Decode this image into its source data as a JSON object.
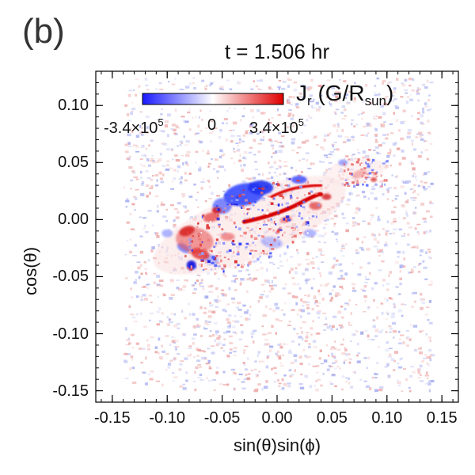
{
  "panel_label": "(b)",
  "chart_data": {
    "type": "heatmap",
    "title": "t = 1.506 hr",
    "xlabel": "sin(θ)sin(ϕ)",
    "ylabel": "cos(θ)",
    "xlim": [
      -0.165,
      0.165
    ],
    "ylim": [
      -0.16,
      0.13
    ],
    "x_ticks": [
      -0.15,
      -0.1,
      -0.05,
      0.0,
      0.05,
      0.1,
      0.15
    ],
    "x_tick_labels": [
      "-0.15",
      "-0.10",
      "-0.05",
      "0.00",
      "0.05",
      "0.10",
      "0.15"
    ],
    "y_ticks": [
      0.1,
      0.05,
      0.0,
      -0.05,
      -0.1,
      -0.15
    ],
    "y_tick_labels": [
      "0.10",
      "0.05",
      "0.00",
      "-0.05",
      "-0.10",
      "-0.15"
    ],
    "data_extent": {
      "x": [
        -0.14,
        0.14
      ],
      "y": [
        -0.15,
        0.125
      ]
    },
    "colorbar": {
      "quantity": "J",
      "quantity_sub": "r",
      "units_open": "(G/R",
      "units_sub": "sun",
      "units_close": ")",
      "min_label": "-3.4×10",
      "min_exp": "5",
      "mid_label": "0",
      "max_label": "3.4×10",
      "max_exp": "5",
      "range": [
        -340000,
        340000
      ],
      "colors": [
        "#1a1aff",
        "#ffffff",
        "#e00000"
      ]
    },
    "noise_level": "low-amplitude random red/blue speckle over the full data extent"
  }
}
